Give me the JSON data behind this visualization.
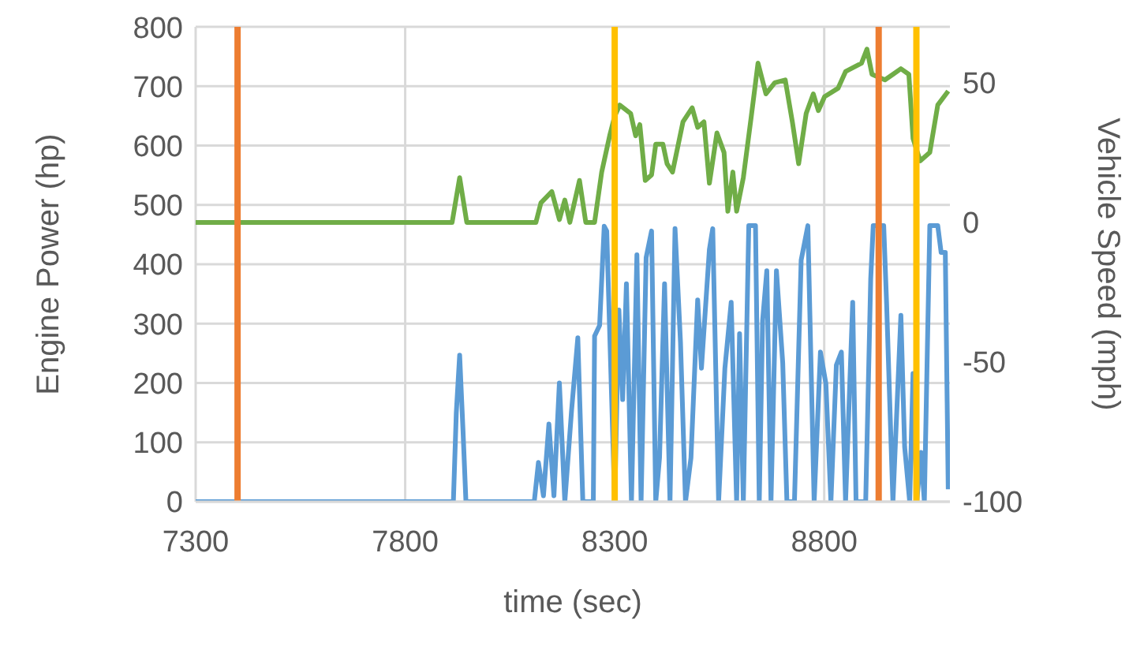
{
  "chart_data": {
    "type": "line",
    "xlabel": "time (sec)",
    "ylabel": "Engine Power (hp)",
    "y2label": "Vehicle Speed (mph)",
    "xlim": [
      7300,
      9100
    ],
    "xticks": [
      7300,
      7800,
      8300,
      8800
    ],
    "ylim": [
      0,
      800
    ],
    "yticks": [
      0,
      100,
      200,
      300,
      400,
      500,
      600,
      700,
      800
    ],
    "y2lim": [
      -100,
      70
    ],
    "y2ticks": [
      -100,
      -50,
      0,
      50
    ],
    "grid": true,
    "marker": "none",
    "line_style": "solid",
    "series": [
      {
        "color": "#5b9bd5",
        "x": [
          7300,
          7915,
          7922,
          7930,
          7938,
          7945,
          8108,
          8118,
          8130,
          8143,
          8155,
          8168,
          8181,
          8197,
          8212,
          8224,
          8249,
          8252,
          8264,
          8275,
          8281,
          8300,
          8310,
          8319,
          8328,
          8340,
          8353,
          8363,
          8375,
          8388,
          8398,
          8407,
          8419,
          8432,
          8444,
          8457,
          8469,
          8482,
          8498,
          8507,
          8526,
          8534,
          8548,
          8563,
          8578,
          8591,
          8598,
          8607,
          8620,
          8636,
          8645,
          8653,
          8663,
          8673,
          8686,
          8701,
          8711,
          8729,
          8745,
          8761,
          8776,
          8791,
          8804,
          8816,
          8829,
          8841,
          8851,
          8868,
          8876,
          8899,
          8911,
          8917,
          8929,
          8942,
          8949,
          8964,
          8983,
          8992,
          9004,
          9012,
          9021,
          9031,
          9039,
          9052,
          9071,
          9079,
          9089,
          9096
        ],
        "values": [
          0,
          0,
          150,
          247,
          120,
          0,
          0,
          66,
          10,
          131,
          10,
          200,
          0,
          153,
          276,
          0,
          0,
          279,
          297,
          464,
          456,
          0,
          323,
          172,
          367,
          0,
          416,
          0,
          411,
          456,
          0,
          74,
          367,
          0,
          460,
          269,
          0,
          74,
          340,
          225,
          425,
          460,
          0,
          225,
          336,
          0,
          283,
          0,
          465,
          465,
          0,
          305,
          389,
          0,
          389,
          234,
          0,
          0,
          407,
          465,
          0,
          252,
          199,
          0,
          230,
          252,
          0,
          336,
          0,
          0,
          376,
          465,
          465,
          465,
          332,
          0,
          314,
          92,
          0,
          216,
          0,
          83,
          0,
          465,
          465,
          420,
          420,
          21
        ]
      },
      {
        "color": "#70ad47",
        "axis": "y2",
        "x": [
          7300,
          7912,
          7930,
          7947,
          8112,
          8124,
          8150,
          8168,
          8181,
          8193,
          8216,
          8231,
          8252,
          8269,
          8288,
          8300,
          8312,
          8338,
          8350,
          8360,
          8373,
          8388,
          8398,
          8415,
          8425,
          8438,
          8463,
          8485,
          8498,
          8513,
          8526,
          8544,
          8561,
          8570,
          8582,
          8591,
          8607,
          8626,
          8642,
          8661,
          8682,
          8707,
          8724,
          8739,
          8757,
          8774,
          8786,
          8801,
          8833,
          8851,
          8889,
          8902,
          8914,
          8945,
          8964,
          8983,
          9002,
          9012,
          9029,
          9052,
          9071,
          9096
        ],
        "values": [
          0,
          0,
          16,
          0,
          0,
          7,
          11,
          1,
          8,
          0,
          15,
          0,
          0,
          18,
          31,
          38,
          42,
          39,
          31,
          35,
          15,
          17,
          28,
          28,
          21,
          18,
          36,
          41,
          34,
          36,
          14,
          32,
          25,
          4,
          18,
          4,
          16,
          38,
          57,
          46,
          50,
          51,
          36,
          21,
          39,
          46,
          40,
          45,
          48,
          54,
          57,
          62,
          53,
          51,
          53,
          55,
          53,
          30,
          22,
          25,
          42,
          47
        ]
      }
    ],
    "ref_lines": [
      {
        "axis": "x",
        "value": 7400,
        "color": "#ed7d31"
      },
      {
        "axis": "x",
        "value": 8300,
        "color": "#ffc000"
      },
      {
        "axis": "x",
        "value": 8930,
        "color": "#ed7d31"
      },
      {
        "axis": "x",
        "value": 9020,
        "color": "#ffc000"
      }
    ]
  }
}
